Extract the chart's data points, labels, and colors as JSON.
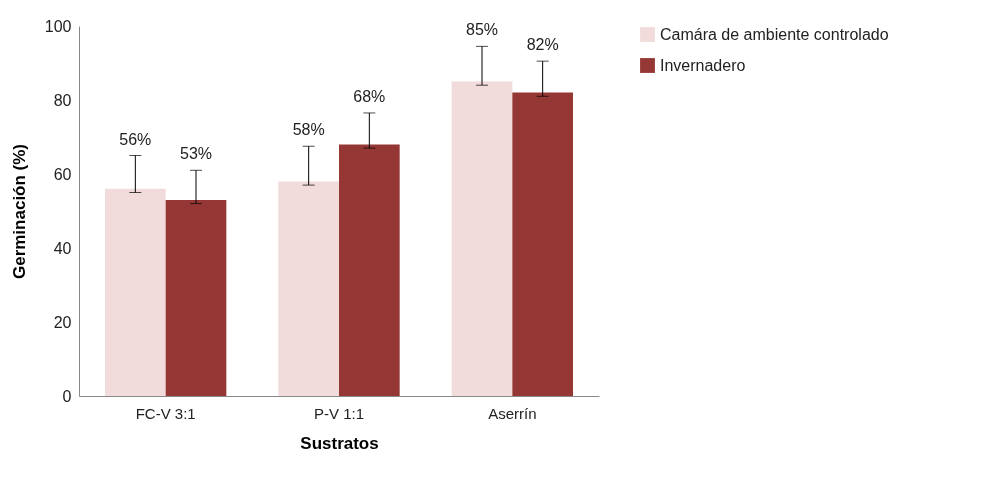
{
  "chart_data": {
    "type": "bar",
    "xlabel": "Sustratos",
    "ylabel": "Germinación (%)",
    "categories": [
      "FC-V 3:1",
      "P-V 1:1",
      "Aserrín"
    ],
    "series": [
      {
        "name": "Camára de ambiente controlado",
        "color": "#f2dcdb",
        "values": [
          56,
          58,
          85
        ],
        "value_labels": [
          "56%",
          "58%",
          "85%"
        ],
        "errors": [
          [
            55,
            65
          ],
          [
            57,
            67.5
          ],
          [
            84,
            94.5
          ]
        ]
      },
      {
        "name": "Invernadero",
        "color": "#953735",
        "values": [
          53,
          68,
          82
        ],
        "value_labels": [
          "53%",
          "68%",
          "82%"
        ],
        "errors": [
          [
            52,
            61
          ],
          [
            67,
            76.5
          ],
          [
            81,
            90.5
          ]
        ]
      }
    ],
    "ylim": [
      0,
      100
    ],
    "yticks": [
      0,
      20,
      40,
      60,
      80,
      100
    ],
    "grid": false,
    "legend": "right"
  }
}
